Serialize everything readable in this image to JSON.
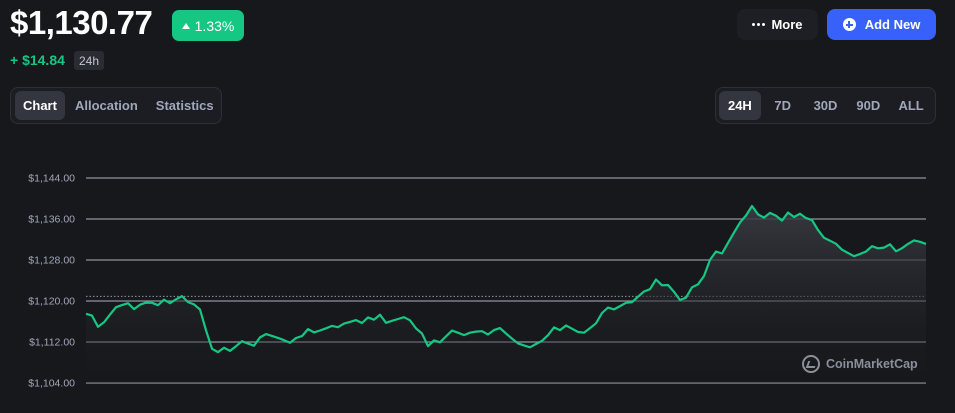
{
  "header": {
    "total_value": "$1,130.77",
    "change_pct": "1.33%",
    "change_abs": "+ $14.84",
    "change_period": "24h",
    "more_label": "More",
    "add_label": "Add New"
  },
  "tabs": [
    "Chart",
    "Allocation",
    "Statistics"
  ],
  "active_tab": "Chart",
  "ranges": [
    "24H",
    "7D",
    "30D",
    "90D",
    "ALL"
  ],
  "active_range": "24H",
  "watermark": "CoinMarketCap",
  "colors": {
    "up": "#16c784",
    "accent": "#3861fb",
    "grid": "#8e939e"
  },
  "chart_data": {
    "type": "area",
    "ytick_labels": [
      "$1,144.00",
      "$1,136.00",
      "$1,128.00",
      "$1,120.00",
      "$1,112.00",
      "$1,104.00"
    ],
    "ylim": [
      1104,
      1144
    ],
    "reference_value": 1120.9,
    "line_color": "#16c784",
    "series": [
      {
        "values": [
          1117.5,
          1117,
          1114.7,
          1115.5,
          1117,
          1118.5,
          1119,
          1119.5,
          1118.5,
          1119.5,
          1120,
          1120,
          1119.5,
          1120.5,
          1119.7,
          1120.3,
          1120.8,
          1119.5,
          1119,
          1118,
          1114,
          1110.5,
          1110,
          1111,
          1110.5,
          1111.5,
          1112.5,
          1112,
          1111.5,
          1113,
          1113.5,
          1113,
          1112.5,
          1112,
          1111.5,
          1112.5,
          1113,
          1114.5,
          1114,
          1114.5,
          1115,
          1115.5,
          1115.2,
          1115.8,
          1116,
          1116.2,
          1115.5,
          1116.5,
          1116,
          1117,
          1115.5,
          1116,
          1116.5,
          1117,
          1116.5,
          1115,
          1114,
          1111.5,
          1112.5,
          1112,
          1113,
          1114,
          1113.5,
          1113,
          1113.5,
          1113.8,
          1114,
          1113.5,
          1114.5,
          1115,
          1114,
          1113,
          1112,
          1111.5,
          1111,
          1111.5,
          1112,
          1113,
          1114.5,
          1114,
          1115,
          1114.5,
          1114,
          1114,
          1115,
          1116,
          1118,
          1119,
          1118.5,
          1119,
          1119.5,
          1119.5,
          1120.5,
          1121.5,
          1122,
          1124,
          1123,
          1123.2,
          1122,
          1120.5,
          1121,
          1123,
          1123.5,
          1125,
          1128,
          1129.5,
          1129,
          1131,
          1133,
          1135,
          1136.5,
          1138.5,
          1137,
          1136.5,
          1137.5,
          1137,
          1136,
          1137.5,
          1136.5,
          1137,
          1136,
          1135.5,
          1133.5,
          1132,
          1131.5,
          1131,
          1130,
          1129.5,
          1129,
          1129.5,
          1130,
          1131,
          1130.5,
          1130.5,
          1131,
          1129.5,
          1130,
          1130.8,
          1131.5,
          1131.3,
          1131
        ]
      }
    ]
  }
}
